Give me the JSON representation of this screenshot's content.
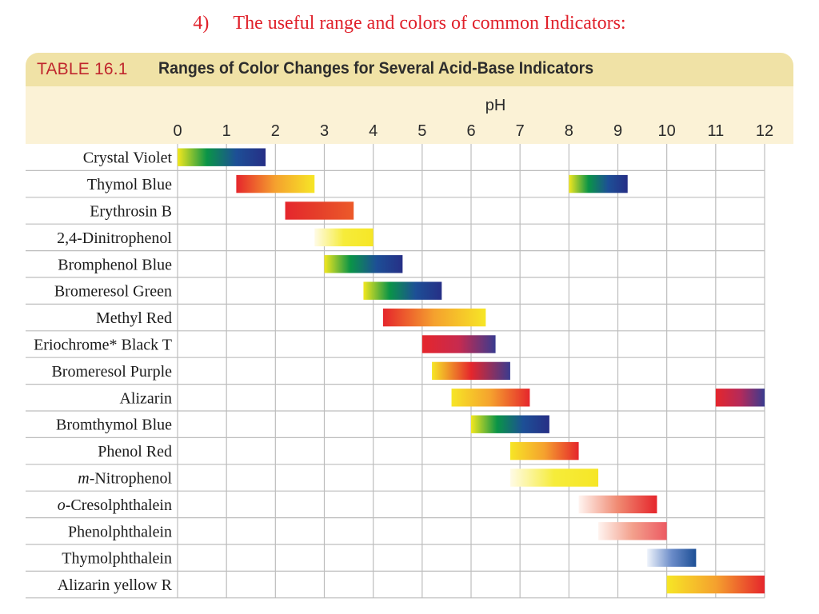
{
  "heading": {
    "number": "4)",
    "text": "The useful range and colors of common Indicators:"
  },
  "table": {
    "label": "TABLE 16.1",
    "title": "Ranges of Color Changes for Several Acid-Base Indicators"
  },
  "colors": {
    "heading": "#e0202a",
    "table_label": "#c0272d",
    "title_band": "#f0e2a6",
    "axis_band": "#fbf2d6",
    "grid": "#bdbdbd"
  },
  "chart_data": {
    "type": "bar",
    "orientation": "horizontal-range",
    "xlabel": "pH",
    "xlim": [
      0,
      12
    ],
    "ticks": [
      0,
      1,
      2,
      3,
      4,
      5,
      6,
      7,
      8,
      9,
      10,
      11,
      12
    ],
    "grid": true,
    "rows": [
      {
        "label": "Crystal Violet",
        "italic_prefix": "",
        "ranges": [
          {
            "from": 0.0,
            "to": 1.8,
            "colors": [
              "#f2e71f",
              "#0a9447",
              "#1d4f96",
              "#262f86"
            ]
          }
        ]
      },
      {
        "label": "Thymol Blue",
        "italic_prefix": "",
        "ranges": [
          {
            "from": 1.2,
            "to": 2.8,
            "colors": [
              "#e5262c",
              "#f5a12e",
              "#f6e626"
            ]
          },
          {
            "from": 8.0,
            "to": 9.2,
            "colors": [
              "#f2e71f",
              "#0a9447",
              "#1d4f96",
              "#262f86"
            ]
          }
        ]
      },
      {
        "label": "Erythrosin B",
        "italic_prefix": "",
        "ranges": [
          {
            "from": 2.2,
            "to": 3.6,
            "colors": [
              "#e5262c",
              "#e5402a",
              "#ec5a2a"
            ]
          }
        ]
      },
      {
        "label": "2,4-Dinitrophenol",
        "italic_prefix": "",
        "ranges": [
          {
            "from": 2.8,
            "to": 4.0,
            "colors": [
              "#fffbe6",
              "#f6ec3a",
              "#f6e626"
            ]
          }
        ]
      },
      {
        "label": "Bromphenol Blue",
        "italic_prefix": "",
        "ranges": [
          {
            "from": 3.0,
            "to": 4.6,
            "colors": [
              "#f2e71f",
              "#0a9447",
              "#1d4f96",
              "#262f86"
            ]
          }
        ]
      },
      {
        "label": "Bromeresol Green",
        "italic_prefix": "",
        "ranges": [
          {
            "from": 3.8,
            "to": 5.4,
            "colors": [
              "#f2e71f",
              "#0a9447",
              "#1d4f96",
              "#262f86"
            ]
          }
        ]
      },
      {
        "label": "Methyl Red",
        "italic_prefix": "",
        "ranges": [
          {
            "from": 4.2,
            "to": 6.3,
            "colors": [
              "#e5262c",
              "#f5a12e",
              "#f6e626"
            ]
          }
        ]
      },
      {
        "label": "Eriochrome* Black T",
        "italic_prefix": "",
        "ranges": [
          {
            "from": 5.0,
            "to": 6.5,
            "colors": [
              "#e5262c",
              "#c72a4f",
              "#3a3b8f"
            ]
          }
        ]
      },
      {
        "label": "Bromeresol Purple",
        "italic_prefix": "",
        "ranges": [
          {
            "from": 5.2,
            "to": 6.8,
            "colors": [
              "#f6e626",
              "#e5262c",
              "#3a3b8f"
            ]
          }
        ]
      },
      {
        "label": "Alizarin",
        "italic_prefix": "",
        "ranges": [
          {
            "from": 5.6,
            "to": 7.2,
            "colors": [
              "#f6e626",
              "#f5a12e",
              "#e5262c"
            ]
          },
          {
            "from": 11.0,
            "to": 12.0,
            "colors": [
              "#e5262c",
              "#b52a5a",
              "#3a3b8f"
            ]
          }
        ]
      },
      {
        "label": "Bromthymol Blue",
        "italic_prefix": "",
        "ranges": [
          {
            "from": 6.0,
            "to": 7.6,
            "colors": [
              "#f2e71f",
              "#0a9447",
              "#1d4f96",
              "#262f86"
            ]
          }
        ]
      },
      {
        "label": "Phenol Red",
        "italic_prefix": "",
        "ranges": [
          {
            "from": 6.8,
            "to": 8.2,
            "colors": [
              "#f6e626",
              "#f5a12e",
              "#e5262c"
            ]
          }
        ]
      },
      {
        "label": "-Nitrophenol",
        "italic_prefix": "m",
        "ranges": [
          {
            "from": 6.8,
            "to": 8.6,
            "colors": [
              "#fffbe6",
              "#f6ec3a",
              "#f6e626"
            ]
          }
        ]
      },
      {
        "label": "-Cresolphthalein",
        "italic_prefix": "o",
        "ranges": [
          {
            "from": 8.2,
            "to": 9.8,
            "colors": [
              "#fff4f0",
              "#f08a72",
              "#e5262c"
            ]
          }
        ]
      },
      {
        "label": "Phenolphthalein",
        "italic_prefix": "",
        "ranges": [
          {
            "from": 8.6,
            "to": 10.0,
            "colors": [
              "#fff4f0",
              "#f3a08c",
              "#ec5a62"
            ]
          }
        ]
      },
      {
        "label": "Thymolphthalein",
        "italic_prefix": "",
        "ranges": [
          {
            "from": 9.6,
            "to": 10.6,
            "colors": [
              "#eef3fb",
              "#6b8cc9",
              "#1d4f96"
            ]
          }
        ]
      },
      {
        "label": "Alizarin yellow R",
        "italic_prefix": "",
        "ranges": [
          {
            "from": 10.0,
            "to": 12.0,
            "colors": [
              "#f6e626",
              "#f5a12e",
              "#e5262c"
            ]
          }
        ]
      }
    ]
  }
}
